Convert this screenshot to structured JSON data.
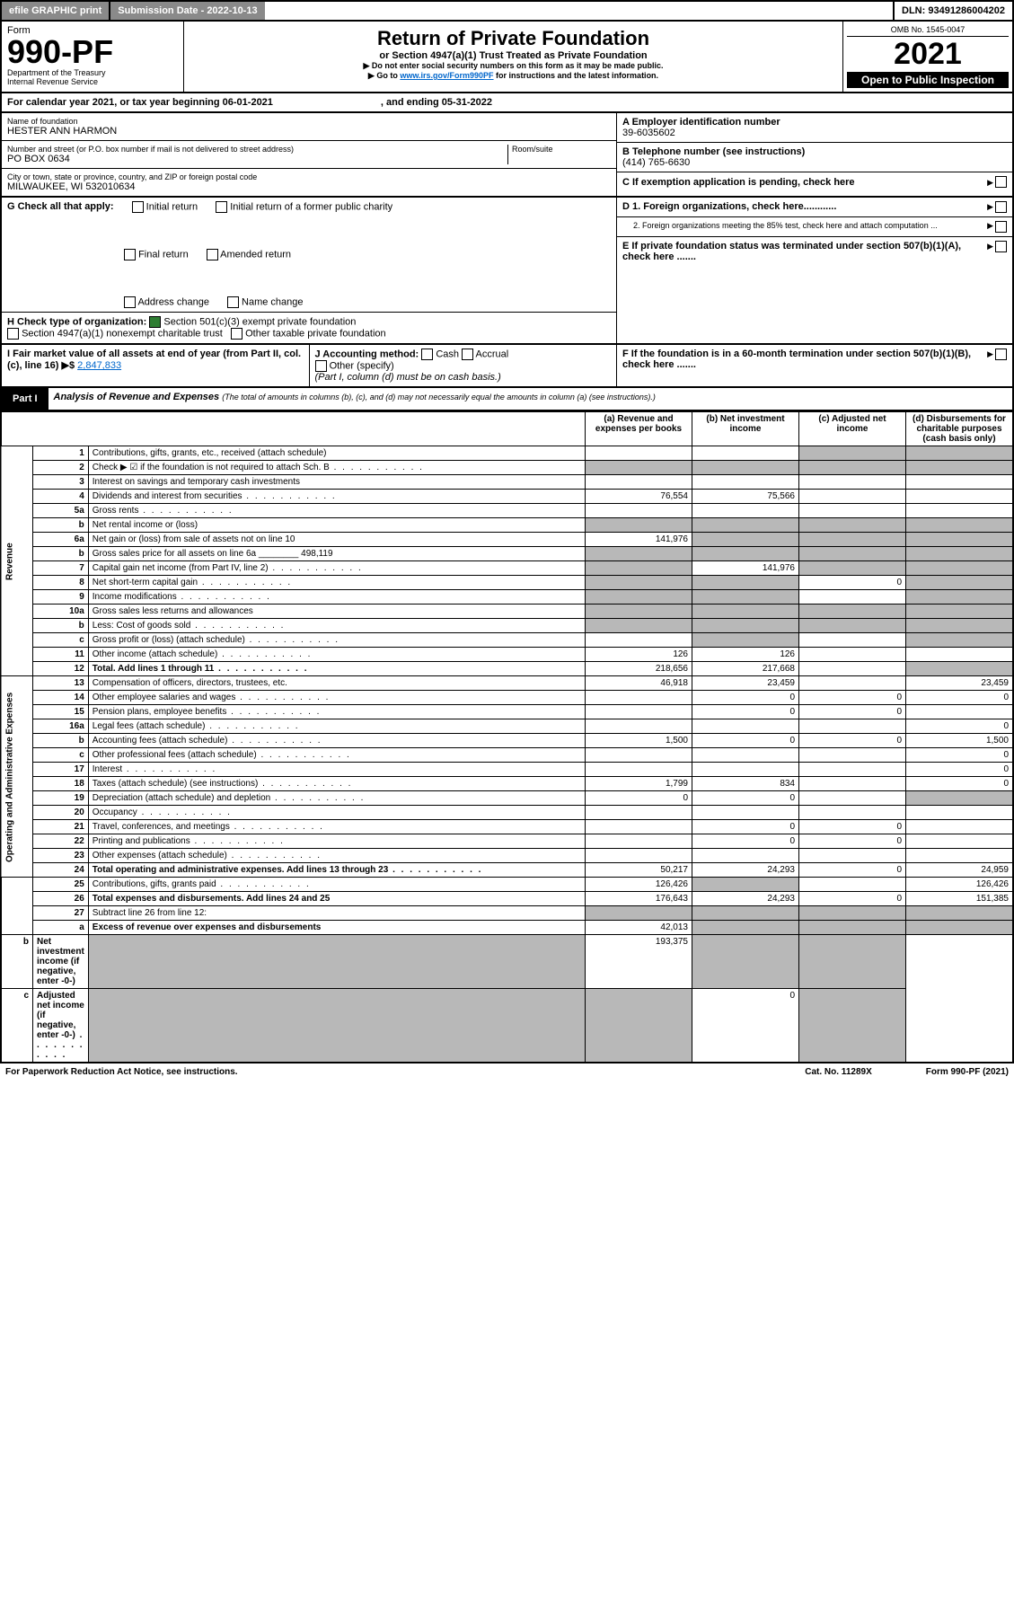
{
  "topbar": {
    "efile": "efile GRAPHIC print",
    "sub": "Submission Date - 2022-10-13",
    "dln": "DLN: 93491286004202"
  },
  "hdr": {
    "form": "Form",
    "formno": "990-PF",
    "dept": "Department of the Treasury",
    "irs": "Internal Revenue Service",
    "title": "Return of Private Foundation",
    "sub": "or Section 4947(a)(1) Trust Treated as Private Foundation",
    "note1": "▶ Do not enter social security numbers on this form as it may be made public.",
    "note2": "▶ Go to ",
    "note2link": "www.irs.gov/Form990PF",
    "note2b": " for instructions and the latest information.",
    "omb": "OMB No. 1545-0047",
    "year": "2021",
    "open": "Open to Public Inspection"
  },
  "cal": "For calendar year 2021, or tax year beginning 06-01-2021",
  "calend": ", and ending 05-31-2022",
  "name": {
    "lbl": "Name of foundation",
    "val": "HESTER ANN HARMON"
  },
  "addr": {
    "lbl": "Number and street (or P.O. box number if mail is not delivered to street address)",
    "val": "PO BOX 0634",
    "room": "Room/suite"
  },
  "city": {
    "lbl": "City or town, state or province, country, and ZIP or foreign postal code",
    "val": "MILWAUKEE, WI  532010634"
  },
  "A": {
    "lbl": "A Employer identification number",
    "val": "39-6035602"
  },
  "B": {
    "lbl": "B Telephone number (see instructions)",
    "val": "(414) 765-6630"
  },
  "C": "C If exemption application is pending, check here",
  "D1": "D 1. Foreign organizations, check here............",
  "D2": "2. Foreign organizations meeting the 85% test, check here and attach computation ...",
  "E": "E  If private foundation status was terminated under section 507(b)(1)(A), check here .......",
  "F": "F  If the foundation is in a 60-month termination under section 507(b)(1)(B), check here .......",
  "G": {
    "lbl": "G Check all that apply:",
    "opts": [
      "Initial return",
      "Final return",
      "Address change",
      "Initial return of a former public charity",
      "Amended return",
      "Name change"
    ]
  },
  "H": {
    "lbl": "H Check type of organization:",
    "a": "Section 501(c)(3) exempt private foundation",
    "b": "Section 4947(a)(1) nonexempt charitable trust",
    "c": "Other taxable private foundation"
  },
  "I": {
    "lbl": "I Fair market value of all assets at end of year (from Part II, col. (c), line 16) ▶$ ",
    "val": "2,847,833"
  },
  "J": {
    "lbl": "J Accounting method:",
    "a": "Cash",
    "b": "Accrual",
    "c": "Other (specify)",
    "note": "(Part I, column (d) must be on cash basis.)"
  },
  "part1": {
    "tab": "Part I",
    "title": "Analysis of Revenue and Expenses",
    "note": "(The total of amounts in columns (b), (c), and (d) may not necessarily equal the amounts in column (a) (see instructions).)"
  },
  "cols": {
    "a": "(a)   Revenue and expenses per books",
    "b": "(b)   Net investment income",
    "c": "(c)  Adjusted net income",
    "d": "(d)  Disbursements for charitable purposes (cash basis only)"
  },
  "vlab": {
    "rev": "Revenue",
    "exp": "Operating and Administrative Expenses"
  },
  "rows": [
    {
      "n": "1",
      "d": "Contributions, gifts, grants, etc., received (attach schedule)",
      "a": "",
      "b": "",
      "c": "s",
      "dsh": "s"
    },
    {
      "n": "2",
      "d": "Check ▶ ☑ if the foundation is not required to attach Sch. B",
      "dots": 1,
      "a": "s",
      "b": "s",
      "c": "s",
      "dsh": "s"
    },
    {
      "n": "3",
      "d": "Interest on savings and temporary cash investments"
    },
    {
      "n": "4",
      "d": "Dividends and interest from securities",
      "dots": 1,
      "a": "76,554",
      "b": "75,566"
    },
    {
      "n": "5a",
      "d": "Gross rents",
      "dots": 1
    },
    {
      "n": "b",
      "d": "Net rental income or (loss)",
      "a": "s",
      "b": "s",
      "c": "s",
      "dsh": "s"
    },
    {
      "n": "6a",
      "d": "Net gain or (loss) from sale of assets not on line 10",
      "a": "141,976",
      "b": "s",
      "c": "s",
      "dsh": "s"
    },
    {
      "n": "b",
      "d": "Gross sales price for all assets on line 6a ________ 498,119",
      "a": "s",
      "b": "s",
      "c": "s",
      "dsh": "s"
    },
    {
      "n": "7",
      "d": "Capital gain net income (from Part IV, line 2)",
      "dots": 1,
      "a": "s",
      "b": "141,976",
      "c": "s",
      "dsh": "s"
    },
    {
      "n": "8",
      "d": "Net short-term capital gain",
      "dots": 1,
      "a": "s",
      "b": "s",
      "c": "0",
      "dsh": "s"
    },
    {
      "n": "9",
      "d": "Income modifications",
      "dots": 1,
      "a": "s",
      "b": "s",
      "dsh": "s"
    },
    {
      "n": "10a",
      "d": "Gross sales less returns and allowances",
      "a": "s",
      "b": "s",
      "c": "s",
      "dsh": "s"
    },
    {
      "n": "b",
      "d": "Less: Cost of goods sold",
      "dots": 1,
      "a": "s",
      "b": "s",
      "c": "s",
      "dsh": "s"
    },
    {
      "n": "c",
      "d": "Gross profit or (loss) (attach schedule)",
      "dots": 1,
      "a": "",
      "b": "s",
      "dsh": "s"
    },
    {
      "n": "11",
      "d": "Other income (attach schedule)",
      "dots": 1,
      "a": "126",
      "b": "126"
    },
    {
      "n": "12",
      "d": "Total. Add lines 1 through 11",
      "dots": 1,
      "bold": 1,
      "a": "218,656",
      "b": "217,668",
      "dsh": "s"
    },
    {
      "n": "13",
      "d": "Compensation of officers, directors, trustees, etc.",
      "a": "46,918",
      "b": "23,459",
      "dv": "23,459"
    },
    {
      "n": "14",
      "d": "Other employee salaries and wages",
      "dots": 1,
      "b": "0",
      "c": "0",
      "dv": "0"
    },
    {
      "n": "15",
      "d": "Pension plans, employee benefits",
      "dots": 1,
      "b": "0",
      "c": "0"
    },
    {
      "n": "16a",
      "d": "Legal fees (attach schedule)",
      "dots": 1,
      "dv": "0"
    },
    {
      "n": "b",
      "d": "Accounting fees (attach schedule)",
      "dots": 1,
      "a": "1,500",
      "b": "0",
      "c": "0",
      "dv": "1,500"
    },
    {
      "n": "c",
      "d": "Other professional fees (attach schedule)",
      "dots": 1,
      "dv": "0"
    },
    {
      "n": "17",
      "d": "Interest",
      "dots": 1,
      "dv": "0"
    },
    {
      "n": "18",
      "d": "Taxes (attach schedule) (see instructions)",
      "dots": 1,
      "a": "1,799",
      "b": "834",
      "dv": "0"
    },
    {
      "n": "19",
      "d": "Depreciation (attach schedule) and depletion",
      "dots": 1,
      "a": "0",
      "b": "0",
      "dsh": "s"
    },
    {
      "n": "20",
      "d": "Occupancy",
      "dots": 1
    },
    {
      "n": "21",
      "d": "Travel, conferences, and meetings",
      "dots": 1,
      "b": "0",
      "c": "0"
    },
    {
      "n": "22",
      "d": "Printing and publications",
      "dots": 1,
      "b": "0",
      "c": "0"
    },
    {
      "n": "23",
      "d": "Other expenses (attach schedule)",
      "dots": 1
    },
    {
      "n": "24",
      "d": "Total operating and administrative expenses. Add lines 13 through 23",
      "dots": 1,
      "bold": 1,
      "a": "50,217",
      "b": "24,293",
      "c": "0",
      "dv": "24,959"
    },
    {
      "n": "25",
      "d": "Contributions, gifts, grants paid",
      "dots": 1,
      "a": "126,426",
      "b": "s",
      "dv": "126,426"
    },
    {
      "n": "26",
      "d": "Total expenses and disbursements. Add lines 24 and 25",
      "bold": 1,
      "a": "176,643",
      "b": "24,293",
      "c": "0",
      "dv": "151,385"
    },
    {
      "n": "27",
      "d": "Subtract line 26 from line 12:",
      "a": "s",
      "b": "s",
      "c": "s",
      "dsh": "s"
    },
    {
      "n": "a",
      "d": "Excess of revenue over expenses and disbursements",
      "bold": 1,
      "a": "42,013",
      "b": "s",
      "c": "s",
      "dsh": "s"
    },
    {
      "n": "b",
      "d": "Net investment income (if negative, enter -0-)",
      "bold": 1,
      "a": "s",
      "b": "193,375",
      "c": "s",
      "dsh": "s"
    },
    {
      "n": "c",
      "d": "Adjusted net income (if negative, enter -0-)",
      "dots": 1,
      "bold": 1,
      "a": "s",
      "b": "s",
      "c": "0",
      "dsh": "s"
    }
  ],
  "footer": {
    "l": "For Paperwork Reduction Act Notice, see instructions.",
    "c": "Cat. No. 11289X",
    "r": "Form 990-PF (2021)"
  }
}
